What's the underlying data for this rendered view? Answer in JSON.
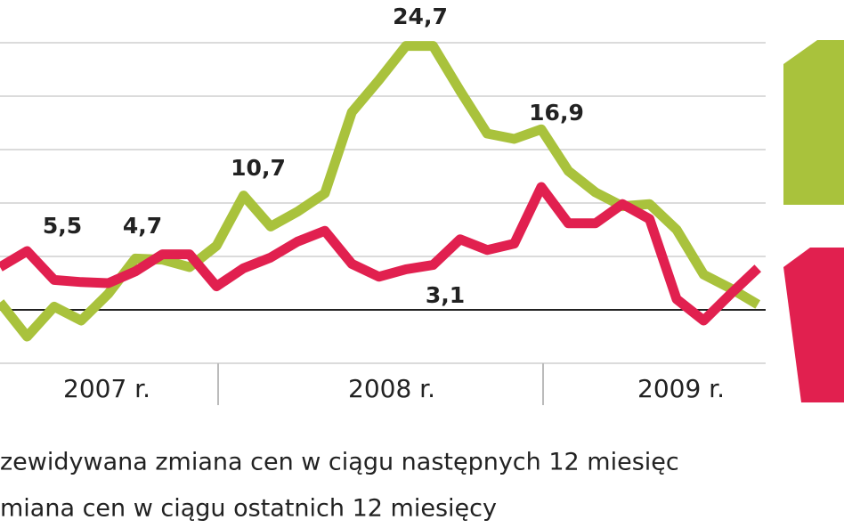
{
  "chart_data": {
    "type": "line",
    "categories": [
      null,
      null,
      null,
      null,
      null,
      null,
      null,
      null,
      null,
      null,
      null,
      null,
      null,
      null,
      null,
      null,
      null,
      null,
      null,
      null,
      null,
      null,
      null,
      null,
      null,
      null,
      null,
      null,
      null
    ],
    "series": [
      {
        "name": "zewidywana zmiana cen w ciągu następnych 12 miesięc",
        "color": "#a9c23c",
        "values": [
          0.7,
          -2.5,
          0.3,
          -1.0,
          1.5,
          4.8,
          4.7,
          4.0,
          6.0,
          10.7,
          7.8,
          9.2,
          10.9,
          18.5,
          21.5,
          24.7,
          24.7,
          20.5,
          16.5,
          16.0,
          16.9,
          13.0,
          11.0,
          9.7,
          9.9,
          7.5,
          3.3,
          2.0,
          0.5
        ]
      },
      {
        "name": "miana cen w ciągu ostatnich 12 miesięcy",
        "color": "#e1204f",
        "values": [
          4.0,
          5.5,
          2.8,
          2.6,
          2.5,
          3.6,
          5.2,
          5.2,
          2.2,
          3.9,
          4.9,
          6.4,
          7.4,
          4.3,
          3.1,
          3.8,
          4.2,
          6.6,
          5.6,
          6.2,
          11.5,
          8.1,
          8.1,
          9.9,
          8.5,
          1.0,
          -1.0,
          1.5,
          3.9
        ]
      }
    ],
    "years": [
      "2007 r.",
      "2008 r.",
      "2009 r."
    ],
    "annotations": [
      "24,7",
      "16,9",
      "10,7",
      "5,5",
      "4,7",
      "3,1"
    ],
    "ylim": [
      -8,
      29
    ],
    "yticks": [
      -5,
      0,
      5,
      10,
      15,
      20,
      25
    ],
    "grid": true
  }
}
